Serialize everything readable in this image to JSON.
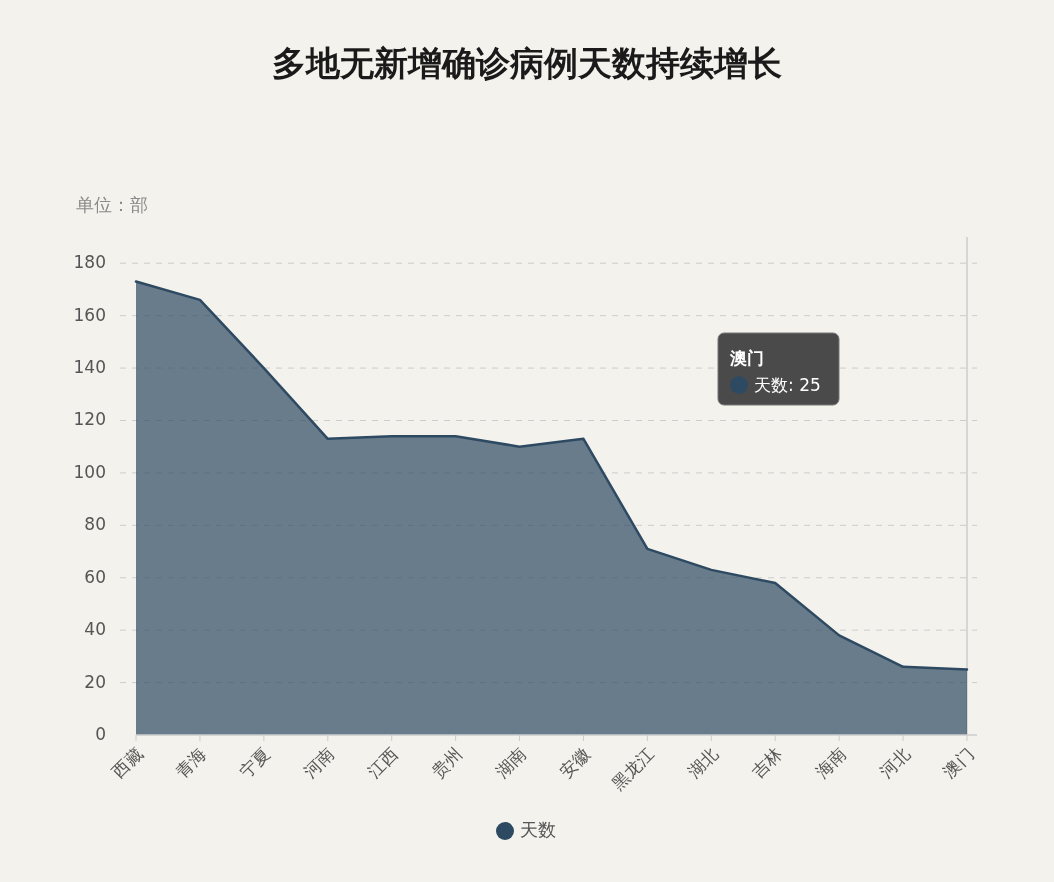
{
  "chart_data": {
    "type": "area",
    "title": "多地无新增确诊病例天数持续增长",
    "ylabel": "单位：部",
    "categories": [
      "西藏",
      "青海",
      "宁夏",
      "河南",
      "江西",
      "贵州",
      "湖南",
      "安徽",
      "黑龙江",
      "湖北",
      "吉林",
      "海南",
      "河北",
      "澳门"
    ],
    "series": [
      {
        "name": "天数",
        "color": "#2e4a62",
        "values": [
          173,
          166,
          140,
          113,
          114,
          114,
          110,
          113,
          71,
          63,
          58,
          38,
          26,
          25
        ]
      }
    ],
    "ylim": [
      0,
      190
    ],
    "yticks": [
      0,
      20,
      40,
      60,
      80,
      100,
      120,
      140,
      160,
      180
    ],
    "grid": "y",
    "legend": "bottom",
    "ref_lines": [
      {
        "axis": "x",
        "value": "澳门",
        "color": "#cccccc"
      }
    ],
    "annotations": [
      "澳门",
      "天数: 25"
    ]
  }
}
